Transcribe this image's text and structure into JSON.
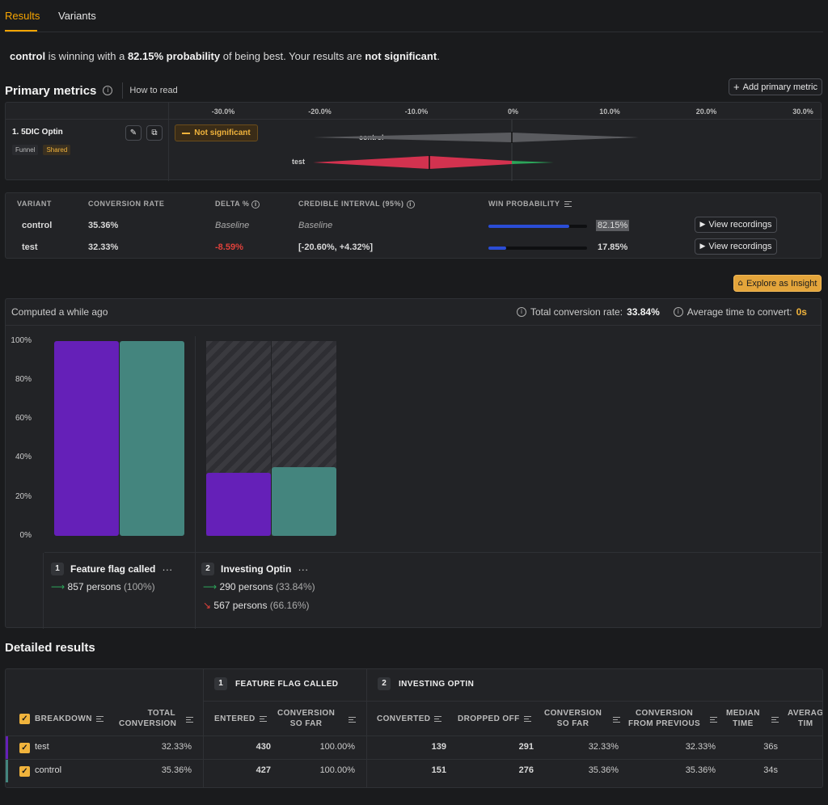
{
  "tabs": [
    {
      "label": "Results"
    },
    {
      "label": "Variants"
    }
  ],
  "summary": {
    "leader": "control",
    "text1": " is winning with a ",
    "prob": "82.15% probability",
    "text2": " of being best. Your results are ",
    "sig": "not significant",
    "text3": "."
  },
  "primary": {
    "title": "Primary metrics",
    "how_to_read": "How to read",
    "add_button": "Add primary metric",
    "axis_ticks": [
      "-30.0%",
      "-20.0%",
      "-10.0%",
      "0%",
      "10.0%",
      "20.0%",
      "30.0%"
    ],
    "metric": {
      "name": "1. 5DIC Optin",
      "tags": [
        "Funnel",
        "Shared"
      ],
      "status": "Not significant",
      "variants": [
        {
          "name": "control",
          "low": -20.6,
          "high": 13.0,
          "delta": 0
        },
        {
          "name": "test",
          "low": -20.6,
          "high": 4.32,
          "delta": -8.59
        }
      ]
    }
  },
  "variant_table": {
    "headers": {
      "variant": "VARIANT",
      "rate": "CONVERSION RATE",
      "delta": "DELTA %",
      "interval": "CREDIBLE INTERVAL (95%)",
      "win": "WIN PROBABILITY"
    },
    "view_label": "View recordings",
    "rows": [
      {
        "variant": "control",
        "rate": "35.36%",
        "delta": "Baseline",
        "interval": "Baseline",
        "win": "82.15%",
        "win_value": 0.8215
      },
      {
        "variant": "test",
        "rate": "32.33%",
        "delta": "-8.59%",
        "interval": "[-20.60%, +4.32%]",
        "win": "17.85%",
        "win_value": 0.1785
      }
    ]
  },
  "explore_button": "Explore as Insight",
  "funnel": {
    "computed": "Computed a while ago",
    "total_label": "Total conversion rate:",
    "total_value": "33.84%",
    "avg_label": "Average time to convert:",
    "avg_value": "0s",
    "y_ticks": [
      "100%",
      "80%",
      "60%",
      "40%",
      "20%",
      "0%"
    ],
    "colors": {
      "purple": "#6520b8",
      "teal": "#44857e"
    },
    "steps": [
      {
        "num": "1",
        "name": "Feature flag called",
        "converted": "857 persons",
        "converted_pct": "(100%)",
        "bars": [
          1.0,
          1.0
        ]
      },
      {
        "num": "2",
        "name": "Investing Optin",
        "converted": "290 persons",
        "converted_pct": "(33.84%)",
        "dropped": "567 persons",
        "dropped_pct": "(66.16%)",
        "bars": [
          0.3233,
          0.3536
        ]
      }
    ]
  },
  "detailed": {
    "title": "Detailed results",
    "step_headers": [
      {
        "num": "1",
        "label": "FEATURE FLAG CALLED"
      },
      {
        "num": "2",
        "label": "INVESTING OPTIN"
      }
    ],
    "columns": {
      "breakdown": "BREAKDOWN",
      "total1": "TOTAL",
      "total2": "CONVERSION",
      "entered": "ENTERED",
      "conv1": "CONVERSION",
      "conv2": "SO FAR",
      "converted": "CONVERTED",
      "dropped": "DROPPED OFF",
      "csf1": "CONVERSION",
      "csf2": "SO FAR",
      "cfp1": "CONVERSION",
      "cfp2": "FROM PREVIOUS",
      "med1": "MEDIAN",
      "med2": "TIME",
      "avg1": "AVERAG",
      "avg2": "TIM"
    },
    "rows": [
      {
        "name": "test",
        "total": "32.33%",
        "entered": "430",
        "conv_so_far": "100.00%",
        "converted": "139",
        "dropped": "291",
        "csf": "32.33%",
        "cfp": "32.33%",
        "median": "36s"
      },
      {
        "name": "control",
        "total": "35.36%",
        "entered": "427",
        "conv_so_far": "100.00%",
        "converted": "151",
        "dropped": "276",
        "csf": "35.36%",
        "cfp": "35.36%",
        "median": "34s"
      }
    ]
  }
}
